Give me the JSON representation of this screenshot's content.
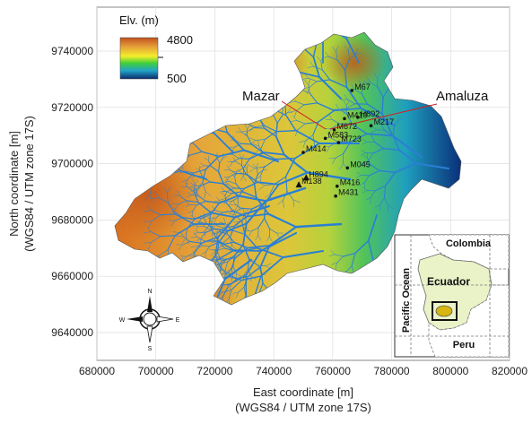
{
  "legend": {
    "title": "Elv. (m)",
    "max_label": "4800",
    "min_label": "500"
  },
  "axes": {
    "x_label": "East coordinate [m]",
    "x_sublabel": "(WGS84 / UTM zone 17S)",
    "y_label": "North coordinate [m]",
    "y_sublabel": "(WGS84 / UTM zone 17S)",
    "x_ticks": [
      "680000",
      "700000",
      "720000",
      "740000",
      "760000",
      "780000",
      "800000",
      "820000"
    ],
    "y_ticks": [
      "9740000",
      "9720000",
      "9700000",
      "9680000",
      "9660000",
      "9640000"
    ]
  },
  "dams": {
    "mazar": "Mazar",
    "amaluza": "Amaluza"
  },
  "stations": [
    {
      "name": "M67",
      "x": 766500,
      "y": 9726000,
      "symbol": "dot"
    },
    {
      "name": "M410",
      "x": 764000,
      "y": 9716000,
      "symbol": "dot"
    },
    {
      "name": "H892",
      "x": 768500,
      "y": 9716500,
      "symbol": "dot"
    },
    {
      "name": "M217",
      "x": 773000,
      "y": 9713500,
      "symbol": "dot"
    },
    {
      "name": "M672",
      "x": 760500,
      "y": 9712000,
      "symbol": "dot"
    },
    {
      "name": "M583",
      "x": 757500,
      "y": 9709000,
      "symbol": "dot"
    },
    {
      "name": "M723",
      "x": 762000,
      "y": 9707500,
      "symbol": "dot"
    },
    {
      "name": "M414",
      "x": 750000,
      "y": 9704000,
      "symbol": "dot"
    },
    {
      "name": "M045",
      "x": 765000,
      "y": 9698500,
      "symbol": "dot"
    },
    {
      "name": "H894",
      "x": 751000,
      "y": 9695000,
      "symbol": "triangle"
    },
    {
      "name": "M138",
      "x": 748500,
      "y": 9692500,
      "symbol": "triangle"
    },
    {
      "name": "M416",
      "x": 761500,
      "y": 9692000,
      "symbol": "dot"
    },
    {
      "name": "M431",
      "x": 761000,
      "y": 9688500,
      "symbol": "dot"
    }
  ],
  "compass": {
    "n": "N",
    "s": "S",
    "e": "E",
    "w": "W"
  },
  "inset": {
    "north": "Colombia",
    "country": "Ecuador",
    "west": "Pacific Ocean",
    "south": "Peru"
  },
  "colors": {
    "high": "#d2691e",
    "mid": "#ffff00",
    "low": "#08306b",
    "river": "#2a7fd4"
  }
}
